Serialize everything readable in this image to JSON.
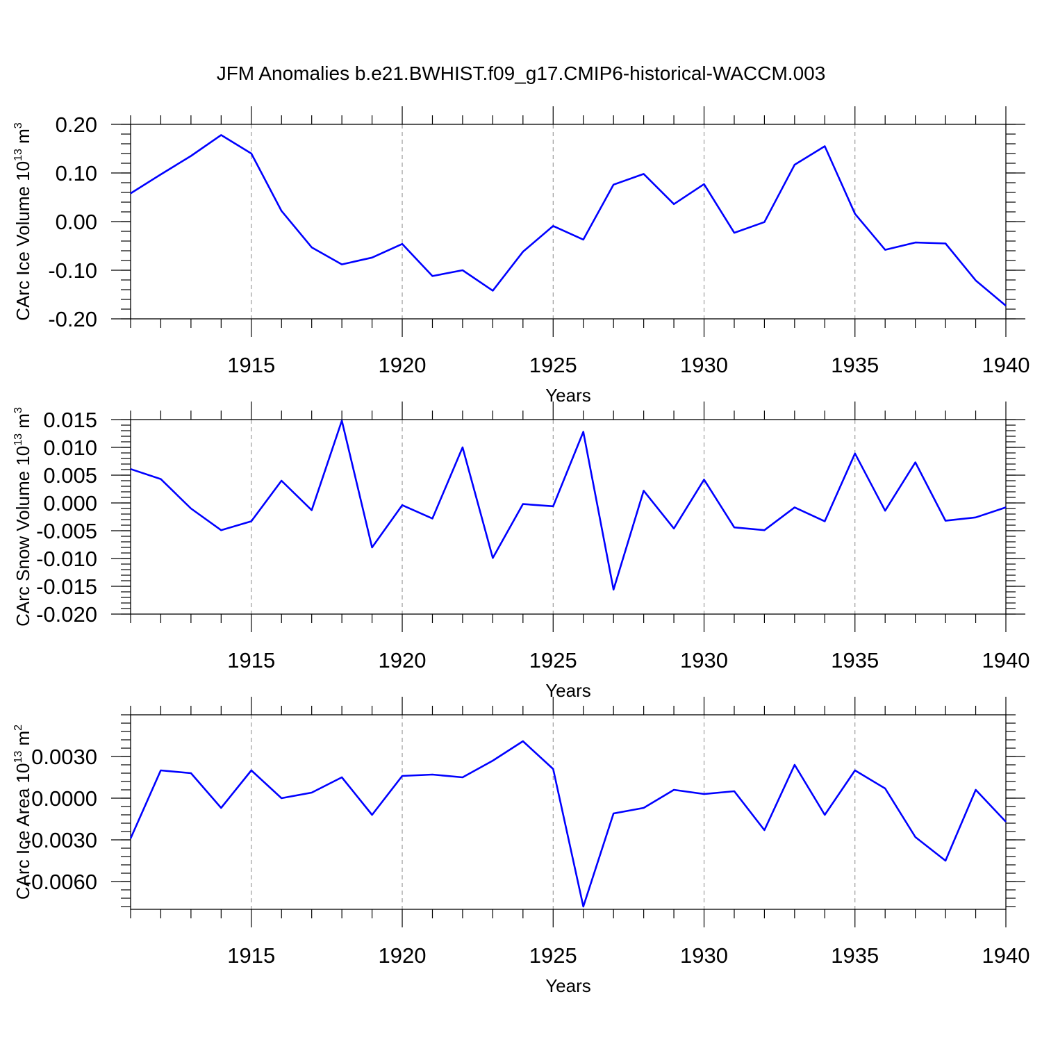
{
  "title": "JFM Anomalies b.e21.BWHIST.f09_g17.CMIP6-historical-WACCM.003",
  "chart_data": [
    {
      "type": "line",
      "ylabel": "CArc Ice Volume 10",
      "ylabel_exp": "13",
      "ylabel_unit": " m",
      "ylabel_unit_exp": "3",
      "xlabel": "Years",
      "xlim": [
        1911,
        1940
      ],
      "ylim": [
        -0.2,
        0.2
      ],
      "grid": "dashed vertical at labeled years",
      "xticks": [
        1915,
        1920,
        1925,
        1930,
        1935,
        1940
      ],
      "xtick_labels": [
        "1915",
        "1920",
        "1925",
        "1930",
        "1935",
        "1940"
      ],
      "yticks": [
        -0.2,
        -0.1,
        0.0,
        0.1,
        0.2
      ],
      "ytick_labels": [
        "-0.20",
        "-0.10",
        "0.00",
        "0.10",
        "0.20"
      ],
      "x": [
        1911,
        1912,
        1913,
        1914,
        1915,
        1916,
        1917,
        1918,
        1919,
        1920,
        1921,
        1922,
        1923,
        1924,
        1925,
        1926,
        1927,
        1928,
        1929,
        1930,
        1931,
        1932,
        1933,
        1934,
        1935,
        1936,
        1937,
        1938,
        1939,
        1940
      ],
      "y": [
        0.058,
        0.097,
        0.135,
        0.178,
        0.14,
        0.022,
        -0.053,
        -0.088,
        -0.074,
        -0.046,
        -0.112,
        -0.1,
        -0.142,
        -0.062,
        -0.009,
        -0.037,
        0.076,
        0.098,
        0.036,
        0.077,
        -0.023,
        -0.001,
        0.117,
        0.155,
        0.016,
        -0.058,
        -0.043,
        -0.045,
        -0.121,
        -0.173
      ]
    },
    {
      "type": "line",
      "ylabel": "CArc Snow Volume 10",
      "ylabel_exp": "13",
      "ylabel_unit": " m",
      "ylabel_unit_exp": "3",
      "xlabel": "Years",
      "xlim": [
        1911,
        1940
      ],
      "ylim": [
        -0.02,
        0.015
      ],
      "grid": "dashed vertical at labeled years",
      "xticks": [
        1915,
        1920,
        1925,
        1930,
        1935,
        1940
      ],
      "xtick_labels": [
        "1915",
        "1920",
        "1925",
        "1930",
        "1935",
        "1940"
      ],
      "yticks": [
        -0.02,
        -0.015,
        -0.01,
        -0.005,
        0.0,
        0.005,
        0.01,
        0.015
      ],
      "ytick_labels": [
        "-0.020",
        "-0.015",
        "-0.010",
        "-0.005",
        "0.000",
        "0.005",
        "0.010",
        "0.015"
      ],
      "x": [
        1911,
        1912,
        1913,
        1914,
        1915,
        1916,
        1917,
        1918,
        1919,
        1920,
        1921,
        1922,
        1923,
        1924,
        1925,
        1926,
        1927,
        1928,
        1929,
        1930,
        1931,
        1932,
        1933,
        1934,
        1935,
        1936,
        1937,
        1938,
        1939,
        1940
      ],
      "y": [
        0.0061,
        0.0043,
        -0.001,
        -0.0049,
        -0.0033,
        0.004,
        -0.0013,
        0.0148,
        -0.008,
        -0.0004,
        -0.0028,
        0.01,
        -0.0099,
        -0.0002,
        -0.0006,
        0.0128,
        -0.0156,
        0.0022,
        -0.0046,
        0.0042,
        -0.0044,
        -0.0049,
        -0.0008,
        -0.0033,
        0.0089,
        -0.0014,
        0.0073,
        -0.0032,
        -0.0026,
        -0.0008
      ]
    },
    {
      "type": "line",
      "ylabel": "CArc Ice Area 10",
      "ylabel_exp": "13",
      "ylabel_unit": " m",
      "ylabel_unit_exp": "2",
      "xlabel": "Years",
      "xlim": [
        1911,
        1940
      ],
      "ylim": [
        -0.008,
        0.006
      ],
      "grid": "dashed vertical at labeled years",
      "xticks": [
        1915,
        1920,
        1925,
        1930,
        1935,
        1940
      ],
      "xtick_labels": [
        "1915",
        "1920",
        "1925",
        "1930",
        "1935",
        "1940"
      ],
      "yticks": [
        -0.006,
        -0.003,
        0.0,
        0.003
      ],
      "ytick_labels": [
        "-0.0060",
        "-0.0030",
        "0.0000",
        "0.0030"
      ],
      "x": [
        1911,
        1912,
        1913,
        1914,
        1915,
        1916,
        1917,
        1918,
        1919,
        1920,
        1921,
        1922,
        1923,
        1924,
        1925,
        1926,
        1927,
        1928,
        1929,
        1930,
        1931,
        1932,
        1933,
        1934,
        1935,
        1936,
        1937,
        1938,
        1939,
        1940
      ],
      "y": [
        -0.0029,
        0.002,
        0.0018,
        -0.0007,
        0.002,
        0.0,
        0.0004,
        0.0015,
        -0.0012,
        0.0016,
        0.0017,
        0.0015,
        0.0027,
        0.0041,
        0.0021,
        -0.0078,
        -0.0011,
        -0.0007,
        0.0006,
        0.0003,
        0.0005,
        -0.0023,
        0.0024,
        -0.0012,
        0.002,
        0.0007,
        -0.0028,
        -0.0045,
        0.0006,
        -0.0017
      ]
    }
  ]
}
